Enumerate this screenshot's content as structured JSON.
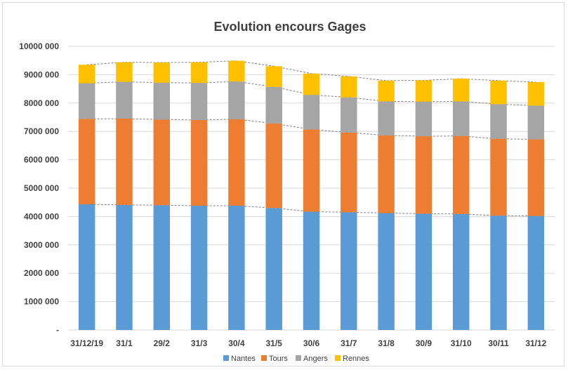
{
  "chart_data": {
    "type": "bar",
    "stacked": true,
    "title": "Evolution encours Gages",
    "xlabel": "",
    "ylabel": "",
    "ylim": [
      0,
      10000000
    ],
    "y_ticks": [
      {
        "value": 0,
        "label": "-"
      },
      {
        "value": 1000000,
        "label": "1000 000"
      },
      {
        "value": 2000000,
        "label": "2000 000"
      },
      {
        "value": 3000000,
        "label": "3000 000"
      },
      {
        "value": 4000000,
        "label": "4000 000"
      },
      {
        "value": 5000000,
        "label": "5000 000"
      },
      {
        "value": 6000000,
        "label": "6000 000"
      },
      {
        "value": 7000000,
        "label": "7000 000"
      },
      {
        "value": 8000000,
        "label": "8000 000"
      },
      {
        "value": 9000000,
        "label": "9000 000"
      },
      {
        "value": 10000000,
        "label": "10000 000"
      }
    ],
    "grid": true,
    "series_lines": "dashed",
    "legend_position": "bottom",
    "categories": [
      "31/12/19",
      "31/1",
      "29/2",
      "31/3",
      "30/4",
      "31/5",
      "30/6",
      "31/7",
      "31/8",
      "30/9",
      "31/10",
      "30/11",
      "31/12"
    ],
    "series": [
      {
        "name": "Nantes",
        "color": "#5b9bd5",
        "values": [
          4430000,
          4410000,
          4400000,
          4380000,
          4380000,
          4300000,
          4170000,
          4150000,
          4120000,
          4100000,
          4090000,
          4030000,
          4020000
        ]
      },
      {
        "name": "Tours",
        "color": "#ed7d31",
        "values": [
          3010000,
          3040000,
          3020000,
          3020000,
          3050000,
          2980000,
          2900000,
          2810000,
          2740000,
          2730000,
          2750000,
          2710000,
          2700000
        ]
      },
      {
        "name": "Angers",
        "color": "#a5a5a5",
        "values": [
          1260000,
          1300000,
          1300000,
          1310000,
          1330000,
          1290000,
          1220000,
          1240000,
          1200000,
          1220000,
          1220000,
          1220000,
          1190000
        ]
      },
      {
        "name": "Rennes",
        "color": "#ffc000",
        "values": [
          650000,
          690000,
          710000,
          730000,
          730000,
          730000,
          750000,
          740000,
          730000,
          750000,
          800000,
          830000,
          830000
        ]
      }
    ]
  }
}
